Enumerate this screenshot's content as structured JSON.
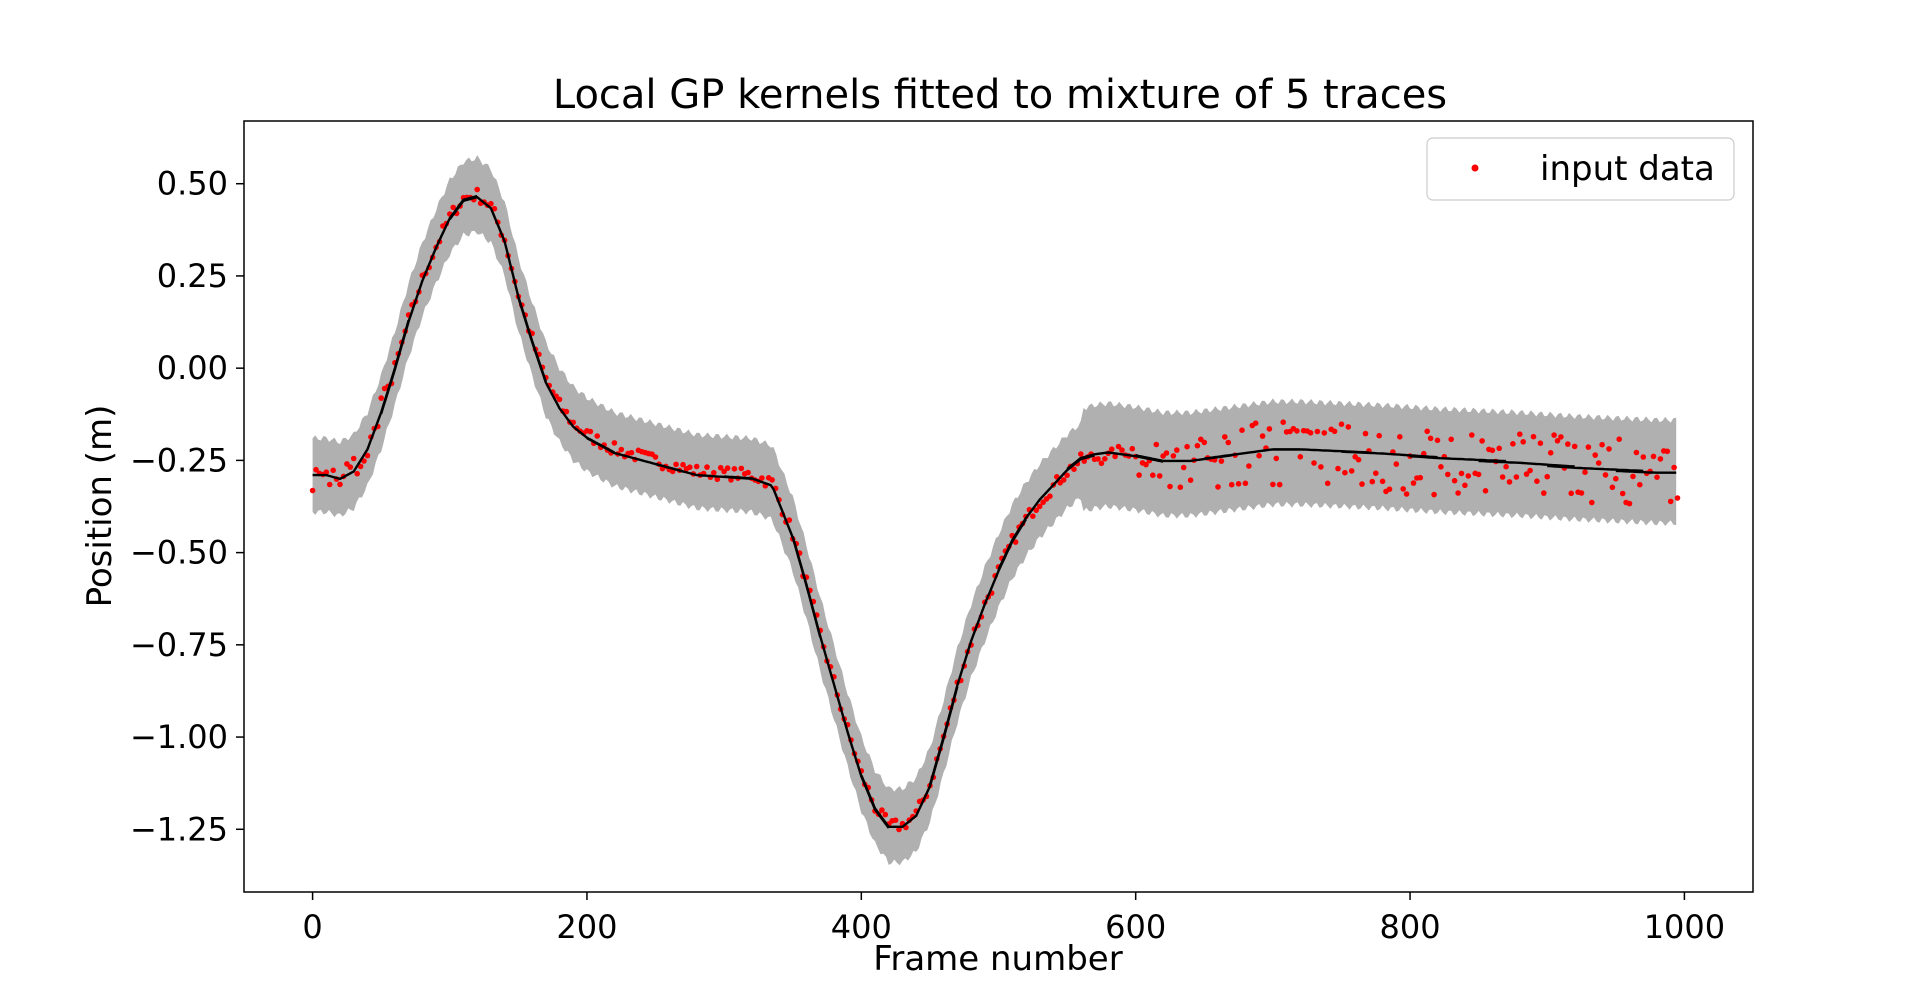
{
  "chart_data": {
    "type": "scatter",
    "title": "Local GP kernels fitted to mixture of 5 traces",
    "xlabel": "Frame number",
    "ylabel": "Position (m)",
    "xlim": [
      -50,
      1050
    ],
    "ylim": [
      -1.42,
      0.67
    ],
    "xticks": [
      0,
      200,
      400,
      600,
      800,
      1000
    ],
    "xtick_labels": [
      "0",
      "200",
      "400",
      "600",
      "800",
      "1000"
    ],
    "yticks": [
      0.5,
      0.25,
      0.0,
      -0.25,
      -0.5,
      -0.75,
      -1.0,
      -1.25
    ],
    "ytick_labels": [
      "0.50",
      "0.25",
      "0.00",
      "−0.25",
      "−0.50",
      "−0.75",
      "−1.00",
      "−1.25"
    ],
    "grid": false,
    "legend": {
      "placement": "top-right",
      "entries": [
        "input data"
      ]
    },
    "colors": {
      "points": "#ff0000",
      "fit": "#000000",
      "band": "#b0b0b0"
    },
    "band_halfwidth": 0.1,
    "traces": 5,
    "frames": [
      0,
      995
    ],
    "series": [
      {
        "name": "input data",
        "mean_curve": {
          "x": [
            0,
            10,
            20,
            30,
            40,
            50,
            60,
            70,
            80,
            90,
            100,
            110,
            120,
            130,
            140,
            150,
            160,
            170,
            180,
            190,
            200,
            220,
            240,
            260,
            280,
            300,
            320,
            335,
            350,
            360,
            370,
            380,
            390,
            400,
            410,
            420,
            430,
            440,
            450,
            460,
            470,
            480,
            490,
            500,
            510,
            520,
            530,
            540,
            550,
            560,
            570,
            580,
            600,
            620,
            640,
            660,
            680,
            700,
            720,
            750,
            780,
            800,
            820,
            850,
            880,
            900,
            920,
            950,
            980,
            990
          ],
          "y": [
            -0.29,
            -0.29,
            -0.3,
            -0.28,
            -0.22,
            -0.12,
            0.0,
            0.13,
            0.24,
            0.33,
            0.41,
            0.46,
            0.47,
            0.44,
            0.35,
            0.2,
            0.08,
            -0.03,
            -0.1,
            -0.15,
            -0.18,
            -0.22,
            -0.24,
            -0.26,
            -0.28,
            -0.285,
            -0.29,
            -0.31,
            -0.45,
            -0.58,
            -0.72,
            -0.85,
            -0.98,
            -1.1,
            -1.19,
            -1.24,
            -1.24,
            -1.21,
            -1.13,
            -1.0,
            -0.86,
            -0.74,
            -0.64,
            -0.55,
            -0.47,
            -0.41,
            -0.36,
            -0.32,
            -0.28,
            -0.25,
            -0.24,
            -0.235,
            -0.245,
            -0.26,
            -0.26,
            -0.25,
            -0.24,
            -0.23,
            -0.23,
            -0.235,
            -0.24,
            -0.245,
            -0.25,
            -0.255,
            -0.26,
            -0.265,
            -0.27,
            -0.275,
            -0.28,
            -0.28
          ]
        },
        "trace_offsets": [
          {
            "start_frame": 560,
            "values": [
              0.0,
              0.07,
              0.05,
              -0.04,
              -0.08
            ]
          }
        ]
      }
    ]
  }
}
